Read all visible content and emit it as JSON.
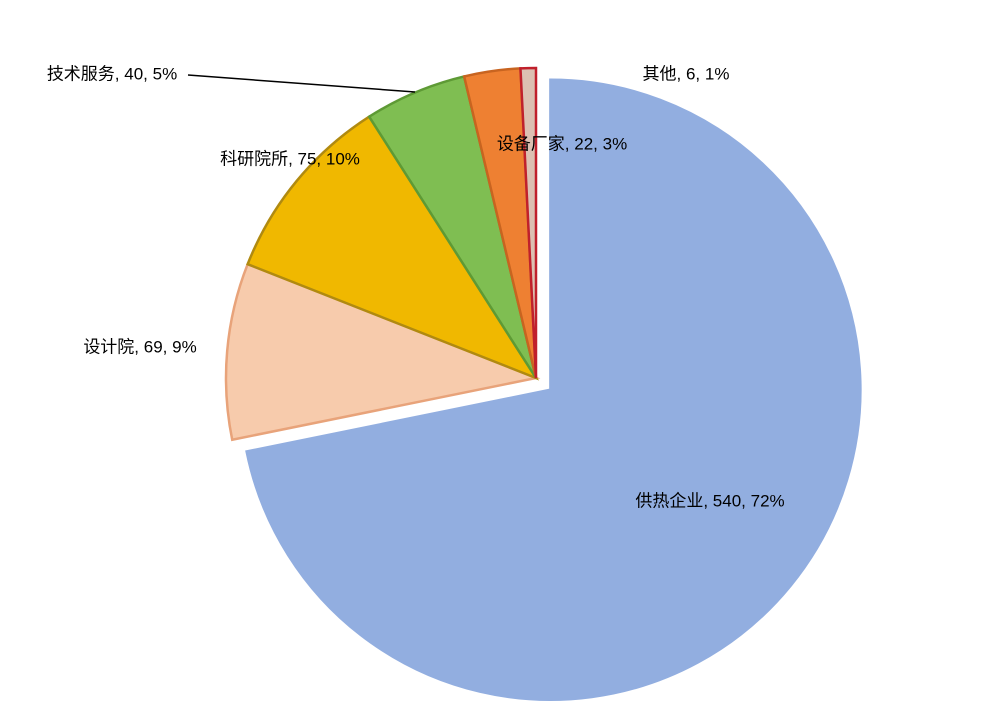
{
  "chart_data": {
    "type": "pie",
    "values": [
      540,
      69,
      75,
      40,
      22,
      6
    ],
    "value_labels": [
      "供热企业, 540, 72%",
      "设计院, 69, 9%",
      "科研院所, 75, 10%",
      "技术服务, 40, 5%",
      "设备厂家, 22, 3%",
      "其他, 6, 1%"
    ],
    "colors": [
      "#92aee0",
      "#f7cbac",
      "#f0b800",
      "#7fbe52",
      "#ee8032",
      "#dcc0b2"
    ],
    "strokes": [
      "#92aee0",
      "#e8a37a",
      "#b08a10",
      "#5e9a35",
      "#c86420",
      "#c0202c"
    ],
    "explode": [
      0.06,
      0,
      0,
      0,
      0,
      0
    ]
  }
}
